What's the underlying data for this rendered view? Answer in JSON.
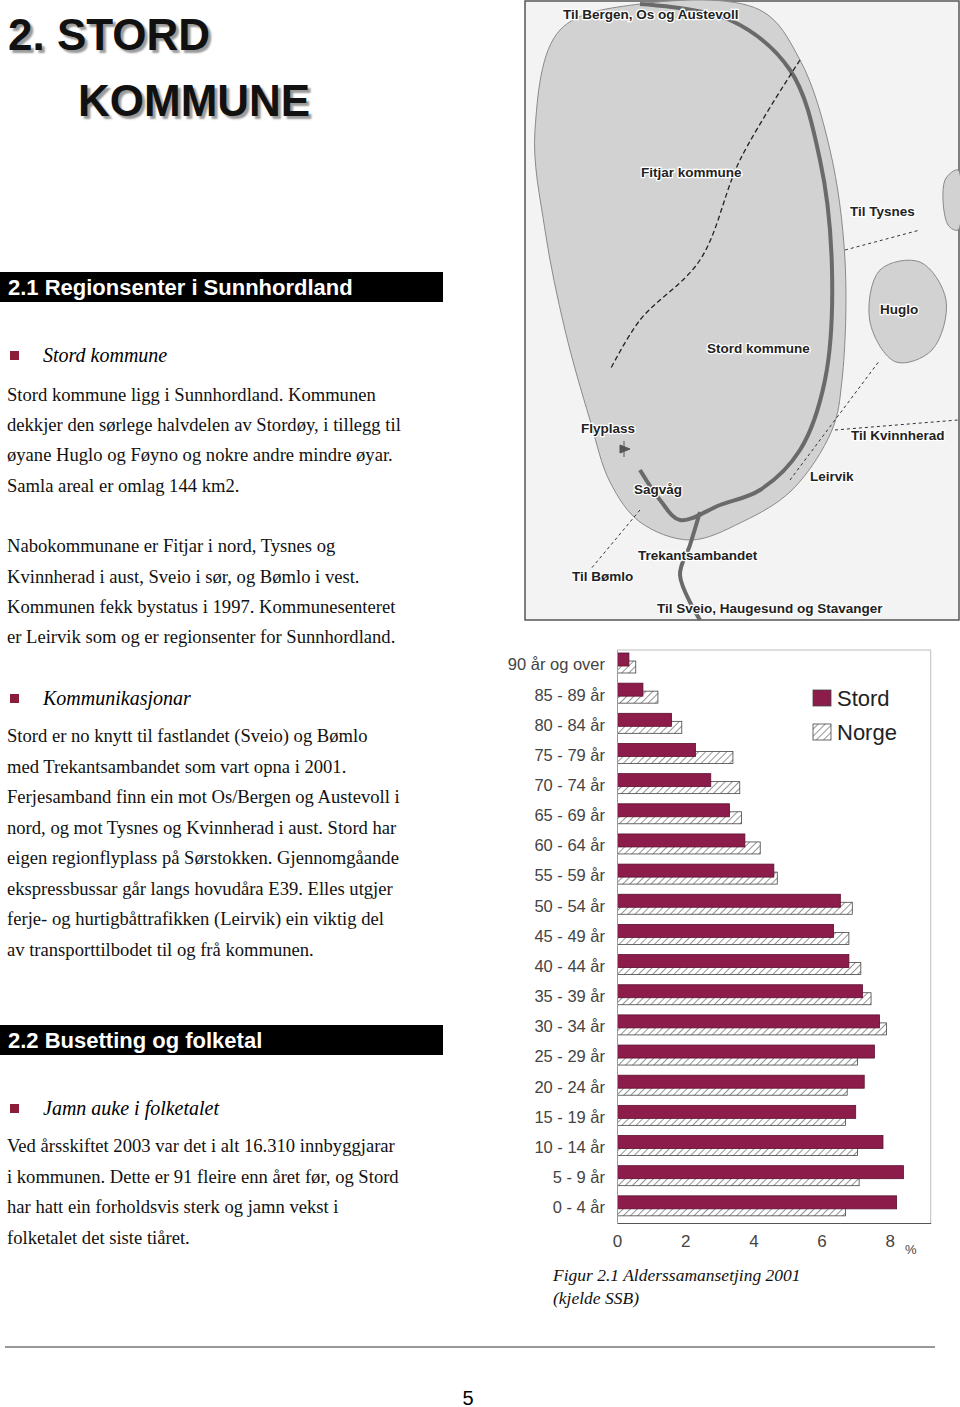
{
  "page": {
    "heading": "2. STORD KOMMUNE",
    "page_number": "5",
    "sections": [
      {
        "title": "2.1 Regionsenter i Sunnhordland",
        "blocks": [
          {
            "bullet": "Stord kommune",
            "paragraphs": [
              [
                "Stord kommune ligg i Sunnhordland. Kommunen",
                "dekkjer den sørlege halvdelen av Stordøy, i tillegg til",
                "øyane Huglo og Føyno og nokre andre mindre øyar.",
                "Samla areal er omlag 144 km2."
              ],
              [
                "Nabokommunane er Fitjar i nord, Tysnes og",
                "Kvinnherad i aust, Sveio i sør, og Bømlo i vest.",
                "Kommunen fekk bystatus i 1997. Kommunesenteret",
                "er Leirvik som og er regionsenter for Sunnhordland."
              ]
            ]
          },
          {
            "bullet": "Kommunikasjonar",
            "paragraphs": [
              [
                "Stord er no knytt til fastlandet (Sveio) og Bømlo",
                "med Trekantsambandet som vart opna i 2001.",
                "Ferjesamband finn ein mot Os/Bergen og Austevoll i",
                "nord, og mot Tysnes og Kvinnherad i aust. Stord har",
                "eigen regionflyplass på Sørstokken. Gjennomgåande",
                "ekspressbussar går langs hovudåra E39. Elles utgjer",
                "ferje- og hurtigbåttrafikken (Leirvik) ein viktig del",
                "av transporttilbodet til og frå kommunen."
              ]
            ]
          }
        ]
      },
      {
        "title": "2.2 Busetting og folketal",
        "blocks": [
          {
            "bullet": "Jamn auke i folketalet",
            "paragraphs": [
              [
                "Ved årsskiftet 2003 var det i alt 16.310 innbyggjarar",
                "i kommunen. Dette er 91 fleire enn året før, og Stord",
                "har hatt ein forholdsvis sterk og jamn vekst i",
                "folketalet det siste tiåret."
              ]
            ]
          }
        ]
      }
    ]
  },
  "map": {
    "labels": [
      "Til Bergen, Os og Austevoll",
      "Fitjar kommune",
      "Til Tysnes",
      "Huglo",
      "Stord kommune",
      "Flyplass",
      "Til Kvinnherad",
      "Leirvik",
      "Sagvåg",
      "Trekantsambandet",
      "Til Bømlo",
      "Til Sveio, Haugesund og Stavanger"
    ]
  },
  "chart_data": {
    "type": "bar",
    "orientation": "horizontal",
    "title": "Figur 2.1 Alderssamansetjing 2001",
    "subtitle": "(kjelde SSB)",
    "x_label": "%",
    "categories": [
      "90 år og over",
      "85 - 89 år",
      "80 - 84 år",
      "75 - 79 år",
      "70 - 74 år",
      "65 - 69 år",
      "60 - 64 år",
      "55 - 59 år",
      "50 - 54 år",
      "45 - 49 år",
      "40 - 44 år",
      "35 - 39 år",
      "30 - 34 år",
      "25 - 29 år",
      "20 - 24 år",
      "15 - 19 år",
      "10 - 14 år",
      "5 - 9 år",
      "0 - 4 år"
    ],
    "series": [
      {
        "name": "Stord",
        "color": "#8c1d4b",
        "values": [
          0.35,
          0.76,
          1.6,
          2.3,
          2.75,
          3.3,
          3.75,
          4.6,
          6.55,
          6.35,
          6.8,
          7.2,
          7.7,
          7.55,
          7.25,
          7.0,
          7.8,
          8.4,
          8.2
        ]
      },
      {
        "name": "Norge",
        "color": "#7a7a7a",
        "values": [
          0.55,
          1.2,
          1.9,
          3.4,
          3.6,
          3.65,
          4.2,
          4.7,
          6.9,
          6.8,
          7.15,
          7.45,
          7.9,
          7.05,
          6.75,
          6.7,
          7.05,
          7.1,
          6.7
        ]
      }
    ],
    "xlim": [
      0,
      9.2
    ],
    "xticks": [
      0,
      2,
      4,
      6,
      8
    ],
    "legend": "upper right",
    "grid": false
  }
}
